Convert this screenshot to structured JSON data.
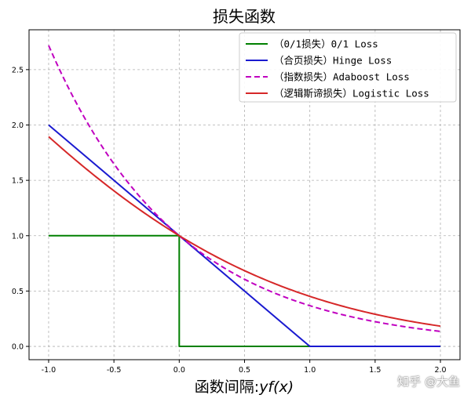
{
  "chart_data": {
    "type": "line",
    "title": "损失函数",
    "xlabel_prefix": "函数间隔:",
    "xlabel_math": "yf(x)",
    "ylabel": "",
    "xlim": [
      -1.15,
      2.15
    ],
    "ylim": [
      -0.12,
      2.86
    ],
    "xticks": [
      -1.0,
      -0.5,
      0.0,
      0.5,
      1.0,
      1.5,
      2.0
    ],
    "xtick_labels": [
      "-1.0",
      "-0.5",
      "0.0",
      "0.5",
      "1.0",
      "1.5",
      "2.0"
    ],
    "yticks": [
      0.0,
      0.5,
      1.0,
      1.5,
      2.0,
      2.5
    ],
    "ytick_labels": [
      "0.0",
      "0.5",
      "1.0",
      "1.5",
      "2.0",
      "2.5"
    ],
    "grid": true,
    "legend_position": "top-right",
    "series": [
      {
        "name": "（0/1损失）0/1 Loss",
        "color": "#008000",
        "dash": "solid",
        "x": [
          -1.0,
          0.0,
          0.0,
          1.0,
          2.0
        ],
        "y": [
          1.0,
          1.0,
          0.0,
          0.0,
          0.0
        ]
      },
      {
        "name": "（合页损失）Hinge Loss",
        "color": "#1a1ad0",
        "dash": "solid",
        "x": [
          -1.0,
          0.0,
          1.0,
          2.0
        ],
        "y": [
          2.0,
          1.0,
          0.0,
          0.0
        ]
      },
      {
        "name": "（指数损失）Adaboost Loss",
        "color": "#c000c0",
        "dash": "dashed",
        "x": [
          -1.0,
          -0.75,
          -0.5,
          -0.25,
          0.0,
          0.25,
          0.5,
          0.75,
          1.0,
          1.25,
          1.5,
          1.75,
          2.0
        ],
        "y": [
          2.72,
          2.12,
          1.65,
          1.28,
          1.0,
          0.78,
          0.61,
          0.47,
          0.37,
          0.29,
          0.22,
          0.17,
          0.14
        ]
      },
      {
        "name": "（逻辑斯谛损失）Logistic Loss",
        "color": "#d62728",
        "dash": "solid",
        "x": [
          -1.0,
          -0.75,
          -0.5,
          -0.25,
          0.0,
          0.25,
          0.5,
          0.75,
          1.0,
          1.25,
          1.5,
          1.75,
          2.0
        ],
        "y": [
          1.89,
          1.62,
          1.37,
          1.17,
          1.0,
          0.84,
          0.7,
          0.58,
          0.45,
          0.37,
          0.29,
          0.24,
          0.18
        ]
      }
    ]
  },
  "watermark": "知乎 @大鱼"
}
